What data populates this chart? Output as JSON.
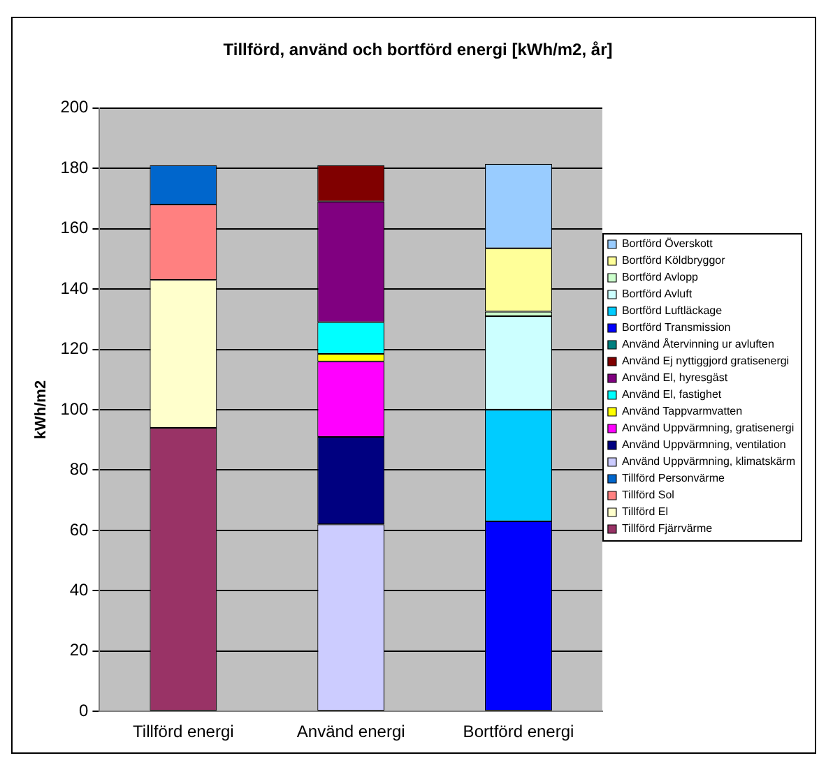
{
  "chart_data": {
    "type": "bar",
    "title": "Tillförd, använd och bortförd energi [kWh/m2, år]",
    "ylabel": "kWh/m2",
    "categories": [
      "Tillförd energi",
      "Använd energi",
      "Bortförd energi"
    ],
    "stacked": true,
    "ylim": [
      0,
      200
    ],
    "yticks": [
      0,
      20,
      40,
      60,
      80,
      100,
      120,
      140,
      160,
      180,
      200
    ],
    "grid": "y",
    "legend": "right",
    "series": [
      {
        "name": "Tillförd Fjärrvärme",
        "color": "#993366",
        "values": [
          94,
          null,
          null
        ]
      },
      {
        "name": "Tillförd El",
        "color": "#ffffcc",
        "values": [
          49,
          null,
          null
        ]
      },
      {
        "name": "Tillförd Sol",
        "color": "#ff8080",
        "values": [
          25,
          null,
          null
        ]
      },
      {
        "name": "Tillförd Personvärme",
        "color": "#0066cc",
        "values": [
          13,
          null,
          null
        ]
      },
      {
        "name": "Använd Uppvärmning, klimatskärm",
        "color": "#ccccff",
        "values": [
          null,
          62,
          null
        ]
      },
      {
        "name": "Använd Uppvärmning, ventilation",
        "color": "#000080",
        "values": [
          null,
          29,
          null
        ]
      },
      {
        "name": "Använd Uppvärmning, gratisenergi",
        "color": "#ff00ff",
        "values": [
          null,
          25,
          null
        ]
      },
      {
        "name": "Använd Tappvarmvatten",
        "color": "#ffff00",
        "values": [
          null,
          2.5,
          null
        ]
      },
      {
        "name": "Använd El, fastighet",
        "color": "#00ffff",
        "values": [
          null,
          10.5,
          null
        ]
      },
      {
        "name": "Använd El, hyresgäst",
        "color": "#800080",
        "values": [
          null,
          40,
          null
        ]
      },
      {
        "name": "Använd Ej nyttiggjord gratisenergi",
        "color": "#800000",
        "values": [
          null,
          12,
          null
        ]
      },
      {
        "name": "Använd Återvinning ur avluften",
        "color": "#008080",
        "values": [
          null,
          0,
          null
        ]
      },
      {
        "name": "Bortförd Transmission",
        "color": "#0000ff",
        "values": [
          null,
          null,
          63
        ]
      },
      {
        "name": "Bortförd Luftläckage",
        "color": "#00ccff",
        "values": [
          null,
          null,
          37
        ]
      },
      {
        "name": "Bortförd Avluft",
        "color": "#ccffff",
        "values": [
          null,
          null,
          31
        ]
      },
      {
        "name": "Bortförd Avlopp",
        "color": "#ccffcc",
        "values": [
          null,
          null,
          1.5
        ]
      },
      {
        "name": "Bortförd Köldbryggor",
        "color": "#ffff99",
        "values": [
          null,
          null,
          21
        ]
      },
      {
        "name": "Bortförd Överskott",
        "color": "#99ccff",
        "values": [
          null,
          null,
          28
        ]
      }
    ]
  }
}
